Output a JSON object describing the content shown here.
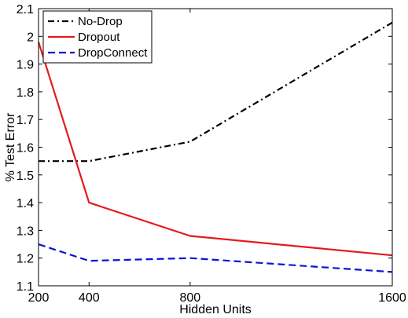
{
  "chart_data": {
    "type": "line",
    "xlabel": "Hidden Units",
    "ylabel": "% Test Error",
    "x": [
      200,
      400,
      800,
      1600
    ],
    "xticks": [
      200,
      400,
      800,
      1600
    ],
    "xtick_labels": [
      "200",
      "400",
      "800",
      "1600"
    ],
    "xlim": [
      200,
      1600
    ],
    "ylim": [
      1.1,
      2.1
    ],
    "yticks": [
      1.1,
      1.2,
      1.3,
      1.4,
      1.5,
      1.6,
      1.7,
      1.8,
      1.9,
      2,
      2.1
    ],
    "ytick_labels": [
      "1.1",
      "1.2",
      "1.3",
      "1.4",
      "1.5",
      "1.6",
      "1.7",
      "1.8",
      "1.9",
      "2",
      "2.1"
    ],
    "grid": false,
    "legend_position": "top-left",
    "series": [
      {
        "name": "No-Drop",
        "values": [
          1.55,
          1.55,
          1.62,
          2.05
        ],
        "color": "#000000",
        "dash": "dash-dot"
      },
      {
        "name": "Dropout",
        "values": [
          1.98,
          1.4,
          1.28,
          1.21
        ],
        "color": "#e41a1c",
        "dash": "solid"
      },
      {
        "name": "DropConnect",
        "values": [
          1.25,
          1.19,
          1.2,
          1.15
        ],
        "color": "#0a14d8",
        "dash": "dashed"
      }
    ]
  }
}
